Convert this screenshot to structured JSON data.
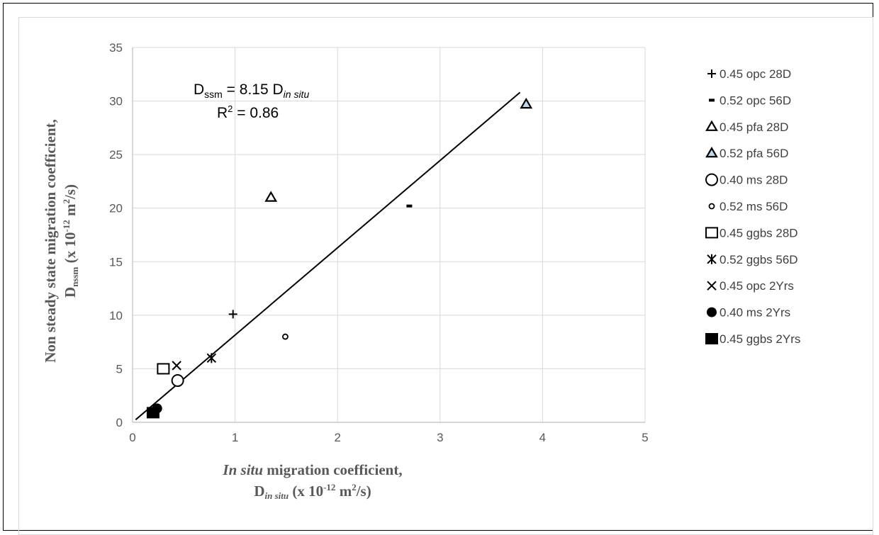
{
  "chart_data": {
    "type": "scatter",
    "xlim": [
      0,
      5
    ],
    "ylim": [
      0,
      35
    ],
    "x_ticks": [
      "0",
      "1",
      "2",
      "3",
      "4",
      "5"
    ],
    "y_ticks": [
      "0",
      "5",
      "10",
      "15",
      "20",
      "25",
      "30",
      "35"
    ],
    "grid": true,
    "legend_position": "right",
    "xlabel_line1_italic": "In situ",
    "xlabel_line1_rest": " migration  coefficient,",
    "xlabel_line2_main": "D",
    "xlabel_line2_sub": "in situ",
    "xlabel_line2_unit_a": " (x 10",
    "xlabel_line2_exp": "-12",
    "xlabel_line2_unit_b": " m",
    "xlabel_line2_exp2": "2",
    "xlabel_line2_unit_c": "/s)",
    "ylabel_line1": "Non steady state migration coefficient,",
    "ylabel_line2_main": "D",
    "ylabel_line2_sub": "nssm",
    "ylabel_line2_unit_a": " (x 10",
    "ylabel_line2_exp": "-12",
    "ylabel_line2_unit_b": " m",
    "ylabel_line2_exp2": "2",
    "ylabel_line2_unit_c": "/s)",
    "trendline": {
      "slope": 8.15,
      "x_range": [
        0.03,
        3.78
      ],
      "eq_main": "D",
      "eq_sub": "ssm",
      "eq_mid": " = 8.15 D",
      "eq_sub2": "in situ",
      "r2_main": "R",
      "r2_sup": "2",
      "r2_rest": " = 0.86"
    },
    "series": [
      {
        "name": "0.45 opc 28D",
        "marker": "plus",
        "points": [
          [
            0.98,
            10.1
          ]
        ]
      },
      {
        "name": "0.52 opc 56D",
        "marker": "dash",
        "points": [
          [
            2.7,
            20.2
          ]
        ]
      },
      {
        "name": "0.45 pfa 28D",
        "marker": "triangle",
        "points": [
          [
            1.35,
            21.0
          ]
        ]
      },
      {
        "name": "0.52 pfa 56D",
        "marker": "triangle-filled-light",
        "points": [
          [
            3.84,
            29.7
          ]
        ]
      },
      {
        "name": "0.40 ms 28D",
        "marker": "circle",
        "points": [
          [
            0.44,
            3.9
          ]
        ]
      },
      {
        "name": "0.52 ms 56D",
        "marker": "circle-small",
        "points": [
          [
            1.49,
            8.0
          ]
        ]
      },
      {
        "name": "0.45 ggbs 28D",
        "marker": "square",
        "points": [
          [
            0.3,
            5.0
          ]
        ]
      },
      {
        "name": "0.52 ggbs 56D",
        "marker": "asterisk",
        "points": [
          [
            0.77,
            6.0
          ]
        ]
      },
      {
        "name": "0.45 opc 2Yrs",
        "marker": "x",
        "points": [
          [
            0.43,
            5.3
          ]
        ]
      },
      {
        "name": "0.40 ms 2Yrs",
        "marker": "circle-filled",
        "points": [
          [
            0.24,
            1.3
          ]
        ]
      },
      {
        "name": "0.45 ggbs 2Yrs",
        "marker": "square-filled",
        "points": [
          [
            0.2,
            0.9
          ]
        ]
      }
    ],
    "colors": {
      "axis": "#bfbfbf",
      "grid": "#d9d9d9",
      "marker": "#000000",
      "trendline": "#000000",
      "light_fill": "#bdd7ee"
    }
  }
}
